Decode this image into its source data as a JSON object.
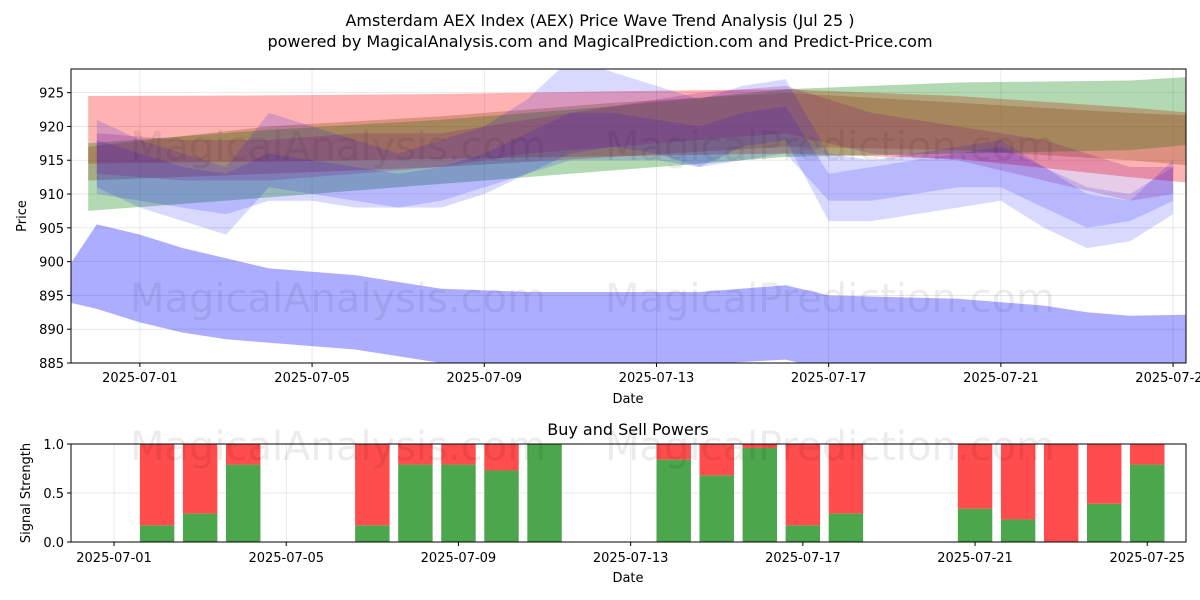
{
  "title": "Amsterdam AEX Index (AEX) Price Wave Trend Analysis (Jul 25 )",
  "subtitle": "powered by MagicalAnalysis.com and MagicalPrediction.com and Predict-Price.com",
  "watermarks": [
    "MagicalAnalysis.com",
    "MagicalPrediction.com"
  ],
  "chart_data": [
    {
      "type": "area",
      "title": "",
      "xlabel": "Date",
      "ylabel": "Price",
      "ylim": [
        885,
        928.5
      ],
      "xlim": [
        -0.6,
        25.3
      ],
      "x_origin_date": "2025-06-30",
      "yticks": [
        885,
        890,
        895,
        900,
        905,
        910,
        915,
        920,
        925
      ],
      "xticks": [
        {
          "day": 1,
          "label": "2025-07-01"
        },
        {
          "day": 5,
          "label": "2025-07-05"
        },
        {
          "day": 9,
          "label": "2025-07-09"
        },
        {
          "day": 13,
          "label": "2025-07-13"
        },
        {
          "day": 17,
          "label": "2025-07-17"
        },
        {
          "day": 21,
          "label": "2025-07-21"
        },
        {
          "day": 25,
          "label": "2025-07-25"
        }
      ],
      "grid": true,
      "series": [
        {
          "name": "band-red-upper",
          "color": "#ff0000",
          "opacity": 0.3,
          "x": [
            -0.2,
            4,
            8,
            12,
            16,
            20,
            24,
            25.8
          ],
          "upper": [
            924.5,
            924.6,
            924.8,
            925.2,
            925.5,
            924.5,
            922.8,
            921.8
          ],
          "lower": [
            914.5,
            914.8,
            915.2,
            915.6,
            916.0,
            915.2,
            912.5,
            911.4
          ]
        },
        {
          "name": "band-green-rising",
          "color": "#008000",
          "opacity": 0.3,
          "x": [
            -0.2,
            4,
            8,
            12,
            16,
            20,
            24,
            25.8
          ],
          "upper": [
            917.5,
            919.5,
            921.0,
            923.0,
            925.5,
            926.5,
            926.8,
            927.5
          ],
          "lower": [
            907.5,
            909.5,
            911.5,
            913.5,
            915.5,
            916.0,
            916.5,
            917.5
          ]
        },
        {
          "name": "band-brown-middle",
          "color": "#8b4513",
          "opacity": 0.3,
          "x": [
            -0.2,
            4,
            8,
            12,
            16,
            20,
            24,
            25.8
          ],
          "upper": [
            917.0,
            920.0,
            921.5,
            923.5,
            925.0,
            923.5,
            922.0,
            921.5
          ],
          "lower": [
            912.0,
            913.0,
            914.0,
            915.5,
            917.0,
            916.5,
            915.0,
            914.0
          ]
        },
        {
          "name": "band-blue-1",
          "color": "#0000ff",
          "opacity": 0.15,
          "x": [
            0,
            1,
            2,
            3,
            4,
            5,
            6,
            7,
            8,
            9,
            10,
            11,
            12,
            13,
            14,
            15,
            16,
            17,
            18,
            19,
            20,
            21,
            22,
            23,
            24,
            25
          ],
          "upper": [
            921,
            918,
            916,
            914,
            922,
            920,
            918,
            916,
            918,
            920,
            924,
            930,
            928,
            926,
            924,
            926,
            927,
            916,
            915,
            916,
            917,
            918,
            914,
            910,
            909,
            915
          ],
          "lower": [
            911,
            908,
            906,
            904,
            911,
            910,
            909,
            908,
            909,
            911,
            913,
            916,
            917,
            916,
            914,
            917,
            918,
            906,
            906,
            907,
            908,
            909,
            905,
            902,
            903,
            907
          ]
        },
        {
          "name": "band-blue-2",
          "color": "#0000ff",
          "opacity": 0.15,
          "x": [
            0,
            1,
            2,
            3,
            4,
            5,
            6,
            7,
            8,
            9,
            10,
            11,
            12,
            13,
            14,
            15,
            16,
            17,
            18,
            19,
            20,
            21,
            22,
            23,
            24,
            25
          ],
          "upper": [
            918,
            916,
            914,
            913,
            916,
            915,
            914,
            913,
            914,
            916,
            919,
            922,
            922,
            921,
            920,
            922,
            923,
            913,
            914,
            915,
            916,
            917,
            914,
            911,
            910,
            914
          ],
          "lower": [
            910,
            909,
            908,
            907,
            909,
            909,
            908,
            908,
            908,
            910,
            913,
            915,
            915,
            915,
            914,
            915,
            916,
            909,
            909,
            910,
            911,
            911,
            908,
            905,
            906,
            909
          ]
        },
        {
          "name": "band-purple",
          "color": "#800080",
          "opacity": 0.2,
          "x": [
            0,
            2,
            4,
            6,
            8,
            10,
            12,
            14,
            16,
            18,
            20,
            22,
            24,
            25
          ],
          "upper": [
            919,
            918,
            918,
            919,
            919,
            921,
            923,
            925,
            926,
            922,
            920,
            918,
            914,
            914
          ],
          "lower": [
            913,
            912,
            912,
            913,
            914,
            916,
            917,
            918,
            919,
            916,
            915,
            912,
            909,
            910
          ]
        },
        {
          "name": "band-blue-low",
          "color": "#0000ff",
          "opacity": 0.32,
          "x": [
            -1,
            0,
            1,
            2,
            3,
            4,
            6,
            8,
            10,
            12,
            14,
            16,
            17,
            20,
            22,
            23,
            24,
            25.8
          ],
          "upper": [
            896,
            905.5,
            904,
            902,
            900.5,
            899,
            898,
            896,
            895.5,
            895.5,
            895.5,
            896.5,
            895,
            894.5,
            893.5,
            892.5,
            892,
            892.2
          ],
          "lower": [
            894.5,
            893,
            891,
            889.5,
            888.5,
            888,
            887,
            885,
            884.5,
            884.5,
            884.8,
            885.5,
            884,
            883.8,
            883.5,
            883,
            882.8,
            882.8
          ]
        }
      ]
    },
    {
      "type": "bar",
      "title": "Buy and Sell Powers",
      "xlabel": "Date",
      "ylabel": "Signal Strength",
      "ylim": [
        0,
        1.0
      ],
      "xlim": [
        -0.6,
        25.3
      ],
      "yticks": [
        0.0,
        0.5,
        1.0
      ],
      "ytick_labels": [
        "0.0",
        "0.5",
        "1.0"
      ],
      "xticks": [
        {
          "day": 1,
          "label": "2025-07-01"
        },
        {
          "day": 5,
          "label": "2025-07-05"
        },
        {
          "day": 9,
          "label": "2025-07-09"
        },
        {
          "day": 13,
          "label": "2025-07-13"
        },
        {
          "day": 17,
          "label": "2025-07-17"
        },
        {
          "day": 21,
          "label": "2025-07-21"
        },
        {
          "day": 25,
          "label": "2025-07-25"
        }
      ],
      "grid": true,
      "series": [
        {
          "name": "Buy",
          "color": "#4ca64c",
          "days": [
            2,
            3,
            4,
            7,
            8,
            9,
            10,
            11,
            14,
            15,
            16,
            17,
            18,
            21,
            22,
            23,
            24,
            25
          ],
          "values": [
            0.17,
            0.29,
            0.79,
            0.17,
            0.79,
            0.79,
            0.73,
            1.0,
            0.84,
            0.68,
            0.96,
            0.17,
            0.29,
            0.34,
            0.23,
            0.0,
            0.39,
            0.79
          ]
        },
        {
          "name": "Sell",
          "color": "#ff4c4c",
          "days": [
            2,
            3,
            4,
            7,
            8,
            9,
            10,
            11,
            14,
            15,
            16,
            17,
            18,
            21,
            22,
            23,
            24,
            25
          ],
          "values": [
            0.83,
            0.71,
            0.21,
            0.83,
            0.21,
            0.21,
            0.27,
            0.0,
            0.16,
            0.32,
            0.04,
            0.83,
            0.71,
            0.66,
            0.77,
            1.0,
            0.61,
            0.21
          ]
        }
      ]
    }
  ]
}
